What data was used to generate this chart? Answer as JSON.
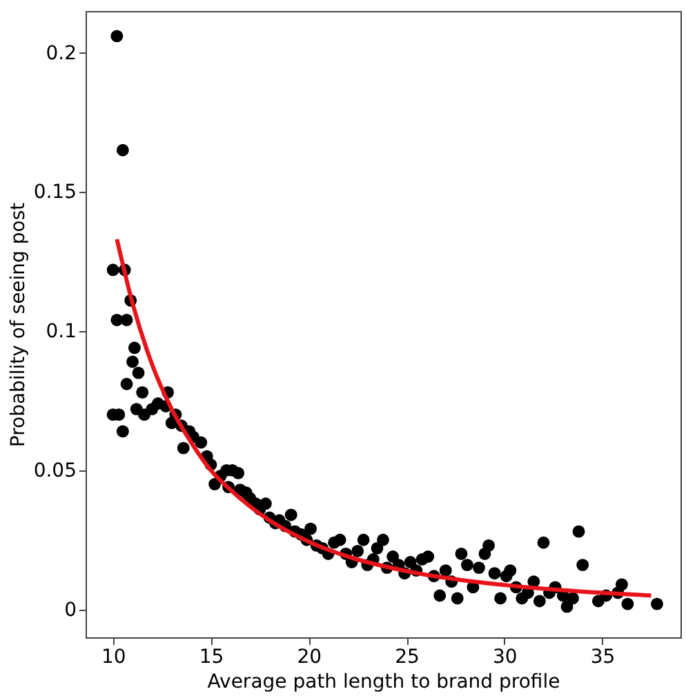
{
  "chart_data": {
    "type": "scatter",
    "xlabel": "Average path length to brand profile",
    "ylabel": "Probability of seeing post",
    "xlim": [
      8.6,
      39
    ],
    "ylim": [
      -0.01,
      0.215
    ],
    "xticks": [
      10,
      15,
      20,
      25,
      30,
      35
    ],
    "yticks": [
      0,
      0.05,
      0.1,
      0.15,
      0.2
    ],
    "grid": false,
    "series": [
      {
        "color": "#000000",
        "marker": "circle",
        "x": [
          10.2,
          10.5,
          10.0,
          10.6,
          10.2,
          10.7,
          10.9,
          11.1,
          11.0,
          10.0,
          10.3,
          10.5,
          10.7,
          11.3,
          11.5,
          11.2,
          11.6,
          12.0,
          12.3,
          12.7,
          12.8,
          13.2,
          13.5,
          13.0,
          13.9,
          14.1,
          13.6,
          14.5,
          14.8,
          15.0,
          15.2,
          15.5,
          15.8,
          16.1,
          16.4,
          15.9,
          16.5,
          16.8,
          17.0,
          17.3,
          17.5,
          17.8,
          18.0,
          18.3,
          18.5,
          18.8,
          19.1,
          19.3,
          19.6,
          19.9,
          20.1,
          20.4,
          20.7,
          21.0,
          21.3,
          21.6,
          21.9,
          22.2,
          22.5,
          22.8,
          23.0,
          23.3,
          23.5,
          23.8,
          24.0,
          24.3,
          24.6,
          24.9,
          25.2,
          25.5,
          25.8,
          26.1,
          26.4,
          26.7,
          27.0,
          27.3,
          27.6,
          27.8,
          28.1,
          28.4,
          28.7,
          29.0,
          29.2,
          29.5,
          29.8,
          30.1,
          30.3,
          30.6,
          30.9,
          31.2,
          31.5,
          31.8,
          32.0,
          32.3,
          32.6,
          33.0,
          33.2,
          33.5,
          33.8,
          34.0,
          34.8,
          35.2,
          35.8,
          36.0,
          36.3,
          37.8
        ],
        "values": [
          0.206,
          0.165,
          0.122,
          0.122,
          0.104,
          0.104,
          0.111,
          0.094,
          0.089,
          0.07,
          0.07,
          0.064,
          0.081,
          0.085,
          0.078,
          0.072,
          0.07,
          0.072,
          0.074,
          0.073,
          0.078,
          0.07,
          0.066,
          0.067,
          0.064,
          0.062,
          0.058,
          0.06,
          0.055,
          0.052,
          0.045,
          0.048,
          0.05,
          0.05,
          0.049,
          0.044,
          0.043,
          0.042,
          0.04,
          0.038,
          0.036,
          0.038,
          0.033,
          0.031,
          0.032,
          0.03,
          0.034,
          0.028,
          0.027,
          0.025,
          0.029,
          0.023,
          0.022,
          0.02,
          0.024,
          0.025,
          0.02,
          0.017,
          0.021,
          0.025,
          0.016,
          0.018,
          0.022,
          0.025,
          0.015,
          0.019,
          0.016,
          0.013,
          0.017,
          0.014,
          0.018,
          0.019,
          0.012,
          0.005,
          0.014,
          0.01,
          0.004,
          0.02,
          0.016,
          0.008,
          0.015,
          0.02,
          0.023,
          0.013,
          0.004,
          0.012,
          0.014,
          0.008,
          0.004,
          0.006,
          0.01,
          0.003,
          0.024,
          0.006,
          0.008,
          0.005,
          0.001,
          0.004,
          0.028,
          0.016,
          0.003,
          0.005,
          0.006,
          0.009,
          0.002,
          0.002
        ]
      },
      {
        "type": "line",
        "color": "#e8141b",
        "x": [
          10.2,
          11,
          12,
          13,
          14,
          15,
          16,
          18,
          20,
          22,
          25,
          28,
          30,
          33,
          37.5
        ],
        "values": [
          0.133,
          0.11,
          0.088,
          0.072,
          0.06,
          0.05,
          0.043,
          0.032,
          0.0244,
          0.019,
          0.0138,
          0.0104,
          0.0088,
          0.0069,
          0.005
        ]
      }
    ]
  }
}
